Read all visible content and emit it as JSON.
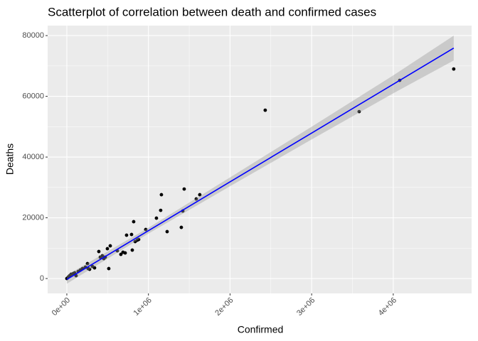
{
  "chart_data": {
    "type": "scatter",
    "title": "Scatterplot of correlation between death and confirmed cases",
    "x_label": "Confirmed",
    "y_label": "Deaths",
    "x": [
      0,
      17400,
      34900,
      52300,
      78400,
      95900,
      113000,
      139000,
      166000,
      192000,
      227000,
      253000,
      261000,
      279000,
      314000,
      340000,
      392000,
      410000,
      436000,
      453000,
      471000,
      497000,
      514000,
      532000,
      619000,
      662000,
      688000,
      715000,
      732000,
      793000,
      802000,
      819000,
      837000,
      863000,
      880000,
      967000,
      1098000,
      1150000,
      1159000,
      1229000,
      1403000,
      1421000,
      1438000,
      1586000,
      1629000,
      2431000,
      3582000,
      4079000,
      4741000
    ],
    "values": [
      0,
      470,
      940,
      1400,
      1640,
      1870,
      940,
      2340,
      2810,
      3270,
      3740,
      4910,
      3270,
      3040,
      3980,
      3510,
      8890,
      7020,
      7490,
      6550,
      7020,
      9820,
      3270,
      10760,
      9120,
      7950,
      8650,
      8420,
      14270,
      14500,
      9360,
      18710,
      12160,
      12630,
      12860,
      16140,
      19880,
      22450,
      27600,
      15440,
      16840,
      22220,
      29470,
      26200,
      27600,
      55430,
      54970,
      65260,
      69000
    ],
    "color": "#000000",
    "fit": {
      "x": [
        0,
        1000000,
        2000000,
        3000000,
        4000000,
        4741000
      ],
      "values": [
        -300,
        15770,
        31840,
        47910,
        63980,
        75890
      ],
      "lower": [
        -1700,
        14800,
        30400,
        45800,
        61000,
        71800
      ],
      "upper": [
        1100,
        16700,
        33300,
        50000,
        66900,
        80000
      ],
      "color": "#0000ff",
      "band_color": "#999999"
    },
    "xlim": [
      -235000,
      4960000
    ],
    "ylim": [
      -4900,
      83300
    ],
    "xticks": [
      {
        "value": 0,
        "label": "0e+00"
      },
      {
        "value": 1000000,
        "label": "1e+06"
      },
      {
        "value": 2000000,
        "label": "2e+06"
      },
      {
        "value": 3000000,
        "label": "3e+06"
      },
      {
        "value": 4000000,
        "label": "4e+06"
      }
    ],
    "yticks": [
      0,
      20000,
      40000,
      60000,
      80000
    ],
    "grid": true
  }
}
